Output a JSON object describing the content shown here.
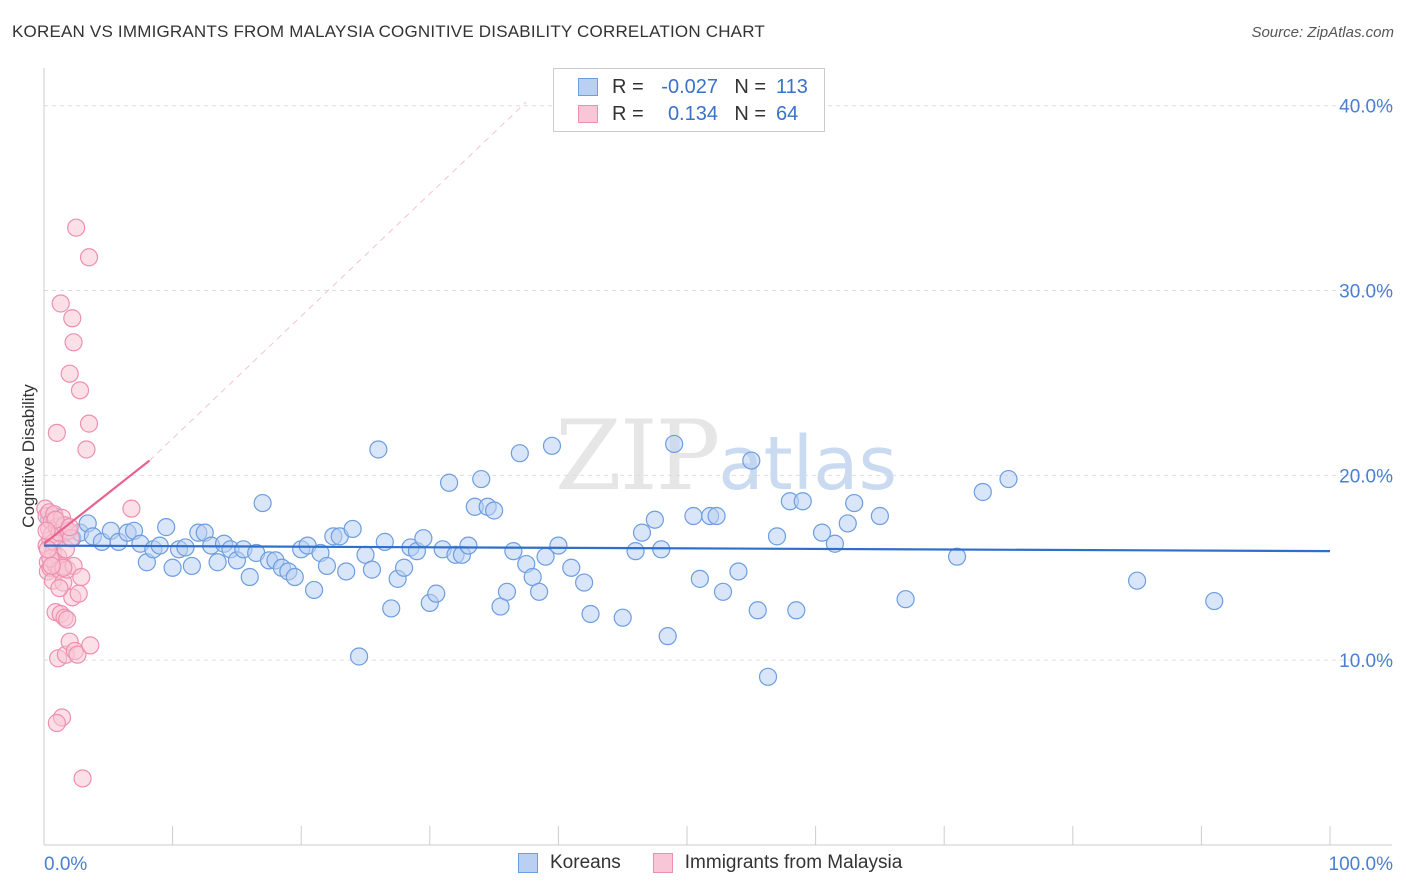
{
  "title": "KOREAN VS IMMIGRANTS FROM MALAYSIA COGNITIVE DISABILITY CORRELATION CHART",
  "source": "Source: ZipAtlas.com",
  "watermark": {
    "zip": "ZIP",
    "atlas": "atlas"
  },
  "legend": {
    "rows": [
      {
        "r_label": "R =",
        "r_value": "-0.027",
        "n_label": "N =",
        "n_value": "113",
        "color": "#6c9ee0",
        "fill": "#b9d0f2"
      },
      {
        "r_label": "R =",
        "r_value": "0.134",
        "n_label": "N =",
        "n_value": "64",
        "color": "#ee8fb0",
        "fill": "#f8c6d6"
      }
    ]
  },
  "bottom_legend": [
    {
      "label": "Koreans",
      "color": "#6c9ee0",
      "fill": "#b9d0f2"
    },
    {
      "label": "Immigrants from Malaysia",
      "color": "#ee8fb0",
      "fill": "#f8c6d6"
    }
  ],
  "chart_data": {
    "type": "scatter",
    "title": "KOREAN VS IMMIGRANTS FROM MALAYSIA COGNITIVE DISABILITY CORRELATION CHART",
    "xlabel": "",
    "ylabel": "Cognitive Disability",
    "xlim": [
      0,
      100
    ],
    "ylim": [
      0,
      41.5
    ],
    "x_tick_labels": [
      {
        "v": 0,
        "label": "0.0%"
      },
      {
        "v": 100,
        "label": "100.0%"
      }
    ],
    "y_tick_labels": [
      {
        "v": 10,
        "label": "10.0%"
      },
      {
        "v": 20,
        "label": "20.0%"
      },
      {
        "v": 30,
        "label": "30.0%"
      },
      {
        "v": 40,
        "label": "40.0%"
      }
    ],
    "grid": true,
    "series": [
      {
        "name": "Koreans",
        "color": "#6c9ee0",
        "fill": "#b9d0f2",
        "trend": {
          "x0": 0,
          "y0": 16.2,
          "x1": 100,
          "y1": 15.9,
          "style": "solid"
        },
        "points": [
          [
            0.4,
            17.6
          ],
          [
            0.8,
            17.8
          ],
          [
            1.0,
            17.2
          ],
          [
            1.6,
            16.9
          ],
          [
            2.2,
            16.6
          ],
          [
            2.8,
            16.9
          ],
          [
            3.4,
            17.4
          ],
          [
            3.8,
            16.7
          ],
          [
            4.5,
            16.4
          ],
          [
            5.2,
            17.0
          ],
          [
            5.8,
            16.4
          ],
          [
            6.5,
            16.9
          ],
          [
            7.0,
            17.0
          ],
          [
            7.5,
            16.3
          ],
          [
            8.0,
            15.3
          ],
          [
            8.5,
            16.0
          ],
          [
            9.0,
            16.2
          ],
          [
            9.5,
            17.2
          ],
          [
            10.0,
            15.0
          ],
          [
            10.5,
            16.0
          ],
          [
            11.0,
            16.1
          ],
          [
            11.5,
            15.1
          ],
          [
            12.0,
            16.9
          ],
          [
            12.5,
            16.9
          ],
          [
            13.0,
            16.2
          ],
          [
            13.5,
            15.3
          ],
          [
            14.0,
            16.3
          ],
          [
            14.5,
            16.0
          ],
          [
            15.0,
            15.4
          ],
          [
            15.5,
            16.0
          ],
          [
            16.0,
            14.5
          ],
          [
            16.5,
            15.8
          ],
          [
            17.0,
            18.5
          ],
          [
            17.5,
            15.4
          ],
          [
            18.0,
            15.4
          ],
          [
            18.5,
            15.0
          ],
          [
            19.0,
            14.8
          ],
          [
            19.5,
            14.5
          ],
          [
            20.0,
            16.0
          ],
          [
            20.5,
            16.2
          ],
          [
            21.0,
            13.8
          ],
          [
            21.5,
            15.8
          ],
          [
            22.0,
            15.1
          ],
          [
            22.5,
            16.7
          ],
          [
            23.0,
            16.7
          ],
          [
            23.5,
            14.8
          ],
          [
            24.0,
            17.1
          ],
          [
            24.5,
            10.2
          ],
          [
            25.0,
            15.7
          ],
          [
            25.5,
            14.9
          ],
          [
            26.0,
            21.4
          ],
          [
            26.5,
            16.4
          ],
          [
            27.0,
            12.8
          ],
          [
            27.5,
            14.4
          ],
          [
            28.0,
            15.0
          ],
          [
            28.5,
            16.1
          ],
          [
            29.0,
            15.9
          ],
          [
            29.5,
            16.6
          ],
          [
            30.0,
            13.1
          ],
          [
            30.5,
            13.6
          ],
          [
            31.0,
            16.0
          ],
          [
            31.5,
            19.6
          ],
          [
            32.0,
            15.7
          ],
          [
            32.5,
            15.7
          ],
          [
            33.0,
            16.2
          ],
          [
            33.5,
            18.3
          ],
          [
            34.0,
            19.8
          ],
          [
            34.5,
            18.3
          ],
          [
            35.0,
            18.1
          ],
          [
            35.5,
            12.9
          ],
          [
            36.0,
            13.7
          ],
          [
            36.5,
            15.9
          ],
          [
            37.0,
            21.2
          ],
          [
            37.5,
            15.2
          ],
          [
            38.0,
            14.5
          ],
          [
            38.5,
            13.7
          ],
          [
            39.0,
            15.6
          ],
          [
            39.5,
            21.6
          ],
          [
            40.0,
            16.2
          ],
          [
            41.0,
            15.0
          ],
          [
            42.0,
            14.2
          ],
          [
            42.5,
            12.5
          ],
          [
            45.0,
            12.3
          ],
          [
            46.0,
            15.9
          ],
          [
            46.5,
            16.9
          ],
          [
            47.5,
            17.6
          ],
          [
            48.0,
            16.0
          ],
          [
            48.5,
            11.3
          ],
          [
            49.0,
            21.7
          ],
          [
            50.5,
            17.8
          ],
          [
            51.0,
            14.4
          ],
          [
            51.8,
            17.8
          ],
          [
            52.3,
            17.8
          ],
          [
            52.8,
            13.7
          ],
          [
            54.0,
            14.8
          ],
          [
            55.0,
            20.8
          ],
          [
            55.5,
            12.7
          ],
          [
            56.3,
            9.1
          ],
          [
            57.0,
            16.7
          ],
          [
            58.0,
            18.6
          ],
          [
            58.5,
            12.7
          ],
          [
            59.0,
            18.6
          ],
          [
            60.5,
            16.9
          ],
          [
            61.5,
            16.3
          ],
          [
            62.5,
            17.4
          ],
          [
            63.0,
            18.5
          ],
          [
            65.0,
            17.8
          ],
          [
            67.0,
            13.3
          ],
          [
            71.0,
            15.6
          ],
          [
            73.0,
            19.1
          ],
          [
            75.0,
            19.8
          ],
          [
            85.0,
            14.3
          ],
          [
            91.0,
            13.2
          ]
        ]
      },
      {
        "name": "Immigrants from Malaysia",
        "color": "#ee8fb0",
        "fill": "#f8c6d6",
        "trend": {
          "x0": 0,
          "y0": 16.3,
          "x1": 8.2,
          "y1": 20.8,
          "style": "solid",
          "extend_to": {
            "x": 37.5,
            "y": 40.2
          }
        },
        "points": [
          [
            0.1,
            18.2
          ],
          [
            0.2,
            17.8
          ],
          [
            0.2,
            16.2
          ],
          [
            0.3,
            15.3
          ],
          [
            0.3,
            14.8
          ],
          [
            0.4,
            18.0
          ],
          [
            0.4,
            17.1
          ],
          [
            0.5,
            16.5
          ],
          [
            0.5,
            15.0
          ],
          [
            0.6,
            17.5
          ],
          [
            0.6,
            16.8
          ],
          [
            0.7,
            15.8
          ],
          [
            0.7,
            14.3
          ],
          [
            0.8,
            17.9
          ],
          [
            0.8,
            16.4
          ],
          [
            0.9,
            15.2
          ],
          [
            0.9,
            12.6
          ],
          [
            1.0,
            22.3
          ],
          [
            1.0,
            17.2
          ],
          [
            1.1,
            15.6
          ],
          [
            1.1,
            10.1
          ],
          [
            1.2,
            16.9
          ],
          [
            1.2,
            14.9
          ],
          [
            1.3,
            29.3
          ],
          [
            1.3,
            12.5
          ],
          [
            1.4,
            17.7
          ],
          [
            1.4,
            6.9
          ],
          [
            1.5,
            15.1
          ],
          [
            1.5,
            14.2
          ],
          [
            1.6,
            17.3
          ],
          [
            1.6,
            12.3
          ],
          [
            1.7,
            16.0
          ],
          [
            1.7,
            10.3
          ],
          [
            1.8,
            14.9
          ],
          [
            1.8,
            12.2
          ],
          [
            1.9,
            17.0
          ],
          [
            2.0,
            25.5
          ],
          [
            2.0,
            11.0
          ],
          [
            2.1,
            16.6
          ],
          [
            2.2,
            28.5
          ],
          [
            2.2,
            13.4
          ],
          [
            2.3,
            27.2
          ],
          [
            2.3,
            15.1
          ],
          [
            2.4,
            10.5
          ],
          [
            2.5,
            33.4
          ],
          [
            2.6,
            10.3
          ],
          [
            2.7,
            13.6
          ],
          [
            2.8,
            24.6
          ],
          [
            2.9,
            14.5
          ],
          [
            3.0,
            3.6
          ],
          [
            3.3,
            21.4
          ],
          [
            3.5,
            31.8
          ],
          [
            3.5,
            22.8
          ],
          [
            3.6,
            10.8
          ],
          [
            6.8,
            18.2
          ],
          [
            1.0,
            6.6
          ],
          [
            0.9,
            17.6
          ],
          [
            0.5,
            15.5
          ],
          [
            1.5,
            15.0
          ],
          [
            0.2,
            17.0
          ],
          [
            1.2,
            13.9
          ],
          [
            0.6,
            15.1
          ],
          [
            2.0,
            17.2
          ],
          [
            0.3,
            16.0
          ]
        ]
      }
    ]
  }
}
